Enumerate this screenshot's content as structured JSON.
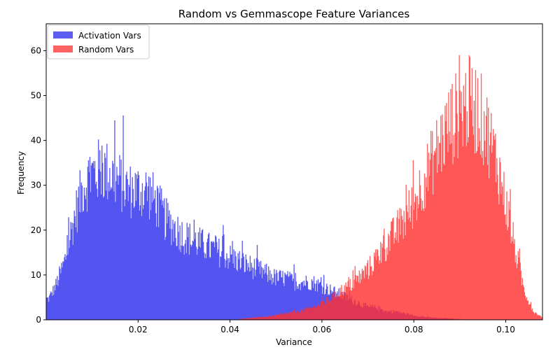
{
  "chart_data": {
    "type": "histogram",
    "title": "Random vs Gemmascope Feature Variances",
    "xlabel": "Variance",
    "ylabel": "Frequency",
    "xlim": [
      0.0,
      0.108
    ],
    "ylim": [
      0,
      66
    ],
    "xticks": [
      0.02,
      0.04,
      0.06,
      0.08,
      0.1
    ],
    "xtick_labels": [
      "0.02",
      "0.04",
      "0.06",
      "0.08",
      "0.10"
    ],
    "yticks": [
      0,
      10,
      20,
      30,
      40,
      50,
      60
    ],
    "ytick_labels": [
      "0",
      "10",
      "20",
      "30",
      "40",
      "50",
      "60"
    ],
    "grid": false,
    "legend_position": "upper-left",
    "series": [
      {
        "name": "Activation Vars",
        "color": "#4040ee",
        "opacity": 0.85,
        "approx_profile": [
          [
            0.0005,
            5
          ],
          [
            0.002,
            8
          ],
          [
            0.004,
            14
          ],
          [
            0.006,
            24
          ],
          [
            0.008,
            32
          ],
          [
            0.01,
            35
          ],
          [
            0.012,
            36
          ],
          [
            0.014,
            35
          ],
          [
            0.016,
            33
          ],
          [
            0.018,
            31
          ],
          [
            0.02,
            31
          ],
          [
            0.022,
            31
          ],
          [
            0.024,
            28
          ],
          [
            0.026,
            24
          ],
          [
            0.028,
            22
          ],
          [
            0.03,
            20
          ],
          [
            0.032,
            19
          ],
          [
            0.034,
            18
          ],
          [
            0.036,
            17
          ],
          [
            0.038,
            16
          ],
          [
            0.04,
            15
          ],
          [
            0.042,
            14
          ],
          [
            0.044,
            13
          ],
          [
            0.046,
            12
          ],
          [
            0.048,
            11
          ],
          [
            0.05,
            10
          ],
          [
            0.052,
            10
          ],
          [
            0.054,
            9
          ],
          [
            0.056,
            9
          ],
          [
            0.058,
            9
          ],
          [
            0.06,
            8
          ],
          [
            0.062,
            7
          ],
          [
            0.064,
            6
          ],
          [
            0.066,
            5
          ],
          [
            0.068,
            4
          ],
          [
            0.07,
            3
          ],
          [
            0.072,
            3
          ],
          [
            0.074,
            2
          ],
          [
            0.076,
            2
          ],
          [
            0.078,
            1.5
          ],
          [
            0.08,
            1
          ],
          [
            0.084,
            0.5
          ],
          [
            0.09,
            0.2
          ],
          [
            0.095,
            0
          ]
        ]
      },
      {
        "name": "Random Vars",
        "color": "#ff3030",
        "opacity": 0.75,
        "approx_profile": [
          [
            0.04,
            0
          ],
          [
            0.045,
            0.5
          ],
          [
            0.05,
            1
          ],
          [
            0.055,
            2
          ],
          [
            0.058,
            3
          ],
          [
            0.06,
            4
          ],
          [
            0.062,
            5
          ],
          [
            0.064,
            7
          ],
          [
            0.066,
            8
          ],
          [
            0.068,
            10
          ],
          [
            0.07,
            12
          ],
          [
            0.072,
            15
          ],
          [
            0.074,
            18
          ],
          [
            0.076,
            21
          ],
          [
            0.078,
            24
          ],
          [
            0.08,
            28
          ],
          [
            0.082,
            33
          ],
          [
            0.084,
            38
          ],
          [
            0.086,
            43
          ],
          [
            0.088,
            47
          ],
          [
            0.09,
            50
          ],
          [
            0.092,
            52
          ],
          [
            0.094,
            50
          ],
          [
            0.096,
            45
          ],
          [
            0.098,
            38
          ],
          [
            0.1,
            28
          ],
          [
            0.102,
            17
          ],
          [
            0.104,
            7
          ],
          [
            0.106,
            2
          ],
          [
            0.108,
            0.5
          ]
        ]
      }
    ]
  }
}
